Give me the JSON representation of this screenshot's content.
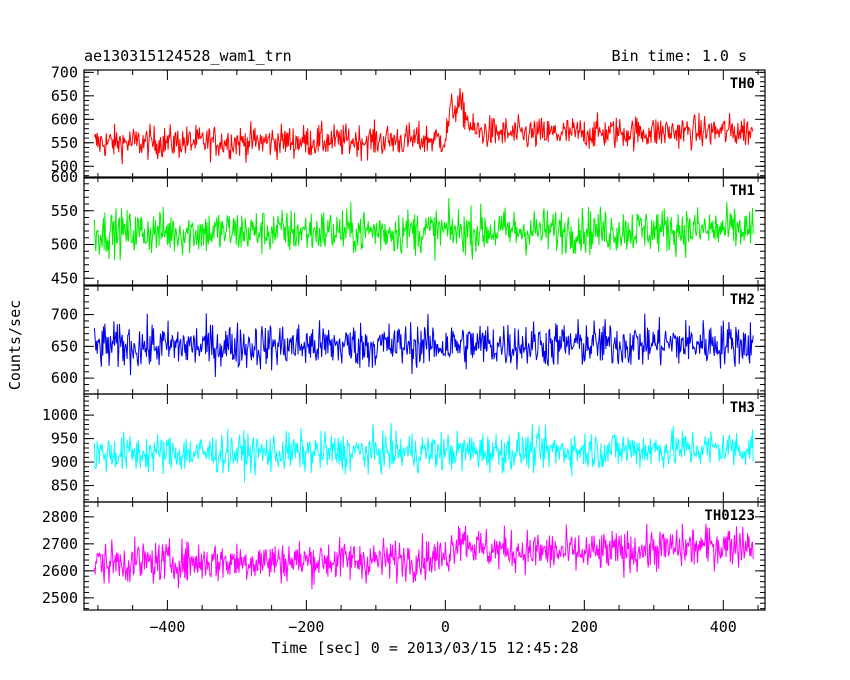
{
  "header": {
    "title": "ae130315124528_wam1_trn",
    "bin_time": "Bin time: 1.0 s"
  },
  "chart_data": {
    "type": "line",
    "title": "ae130315124528_wam1_trn",
    "subtitle": "Bin time: 1.0 s",
    "xlabel": "Time [sec] 0 = 2013/03/15 12:45:28",
    "ylabel": "Counts/sec",
    "xlim": [
      -520,
      460
    ],
    "x_range_of_data": [
      -505,
      443
    ],
    "bin_time_s": 1.0,
    "x_ticks": [
      -400,
      -200,
      0,
      200,
      400
    ],
    "grid": false,
    "panels": [
      {
        "name": "TH0",
        "color": "#ff0000",
        "ylim": [
          475,
          705
        ],
        "y_ticks": [
          500,
          550,
          600,
          650,
          700
        ],
        "baseline": 555,
        "spread": 25,
        "trend": [
          [
            -505,
            550
          ],
          [
            -100,
            555
          ],
          [
            0,
            558
          ],
          [
            8,
            620
          ],
          [
            22,
            630
          ],
          [
            40,
            575
          ],
          [
            100,
            568
          ],
          [
            250,
            572
          ],
          [
            440,
            575
          ]
        ]
      },
      {
        "name": "TH1",
        "color": "#00ee00",
        "ylim": [
          440,
          600
        ],
        "y_ticks": [
          450,
          500,
          550,
          600
        ],
        "baseline": 520,
        "spread": 24,
        "trend": [
          [
            -505,
            518
          ],
          [
            0,
            520
          ],
          [
            440,
            522
          ]
        ]
      },
      {
        "name": "TH2",
        "color": "#0000ee",
        "ylim": [
          575,
          745
        ],
        "y_ticks": [
          600,
          650,
          700
        ],
        "baseline": 650,
        "spread": 26,
        "trend": [
          [
            -505,
            650
          ],
          [
            0,
            652
          ],
          [
            440,
            655
          ]
        ]
      },
      {
        "name": "TH3",
        "color": "#00ffff",
        "ylim": [
          815,
          1045
        ],
        "y_ticks": [
          850,
          900,
          950,
          1000
        ],
        "baseline": 920,
        "spread": 30,
        "trend": [
          [
            -505,
            918
          ],
          [
            0,
            922
          ],
          [
            440,
            930
          ]
        ]
      },
      {
        "name": "TH0123",
        "color": "#ff00ff",
        "ylim": [
          2455,
          2855
        ],
        "y_ticks": [
          2500,
          2600,
          2700,
          2800
        ],
        "baseline": 2640,
        "spread": 55,
        "trend": [
          [
            -505,
            2630
          ],
          [
            -100,
            2640
          ],
          [
            0,
            2650
          ],
          [
            20,
            2730
          ],
          [
            50,
            2680
          ],
          [
            200,
            2665
          ],
          [
            440,
            2700
          ]
        ]
      }
    ]
  }
}
